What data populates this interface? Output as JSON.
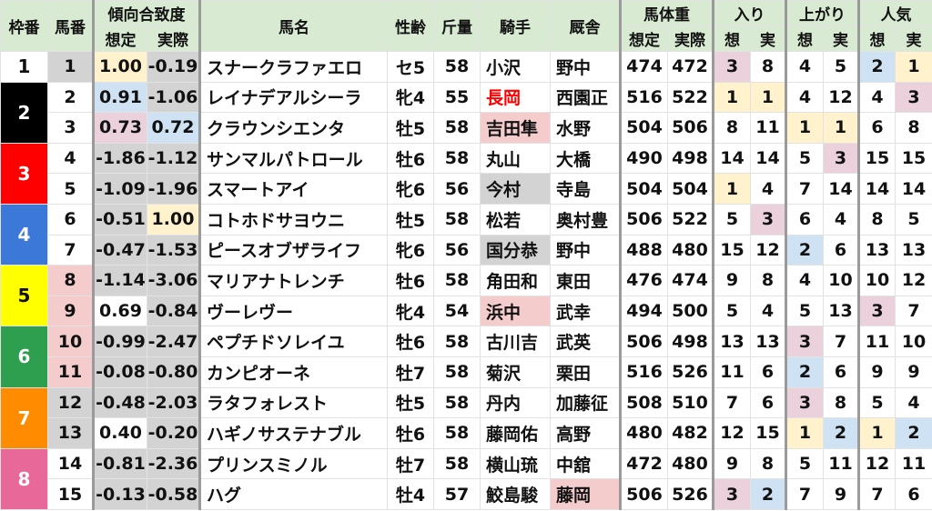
{
  "colors": {
    "g": "#d3d3d3",
    "y": "#fff2cc",
    "b": "#cfe2f3",
    "p": "#ead1dc",
    "s": "#f4cccc",
    "w": "#ffffff",
    "header": "#d9ead3",
    "jockey_red": "#ff0000"
  },
  "headers": {
    "waku": "枠番",
    "umaban": "馬番",
    "match": "傾向合致度",
    "match_pred": "想定",
    "match_act": "実際",
    "name": "馬名",
    "sexage": "性齢",
    "weight": "斤量",
    "jockey": "騎手",
    "trainer": "厩舎",
    "body": "馬体重",
    "body_pred": "想定",
    "body_act": "実際",
    "iri": "入り",
    "iri_pred": "想",
    "iri_act": "実",
    "agari": "上がり",
    "agari_pred": "想",
    "agari_act": "実",
    "ninki": "人気",
    "ninki_pred": "想",
    "ninki_act": "実"
  },
  "waku": [
    {
      "label": "1",
      "bg": "#ffffff",
      "fg": "#111111",
      "rows": 1
    },
    {
      "label": "2",
      "bg": "#000000",
      "fg": "#ffffff",
      "rows": 2
    },
    {
      "label": "3",
      "bg": "#ff0000",
      "fg": "#ffffff",
      "rows": 2
    },
    {
      "label": "4",
      "bg": "#3c78d8",
      "fg": "#ffffff",
      "rows": 2
    },
    {
      "label": "5",
      "bg": "#ffff00",
      "fg": "#111111",
      "rows": 2
    },
    {
      "label": "6",
      "bg": "#2e9e4f",
      "fg": "#ffffff",
      "rows": 2
    },
    {
      "label": "7",
      "bg": "#ff8c00",
      "fg": "#ffffff",
      "rows": 2
    },
    {
      "label": "8",
      "bg": "#e8689a",
      "fg": "#ffffff",
      "rows": 2
    }
  ],
  "rows": [
    {
      "umaban": "1",
      "ub": "g",
      "pred": "1.00",
      "pb": "y",
      "act": "-0.19",
      "ab": "g",
      "name": "スナークラファエロ",
      "sexage": "セ5",
      "weight": "58",
      "jockey": "小沢",
      "jb": "w",
      "trainer": "野中",
      "tb": "w",
      "body_pred": "474",
      "body_act": "472",
      "iri": [
        "3",
        "8"
      ],
      "iri_bg": [
        "p",
        "w"
      ],
      "agari": [
        "4",
        "5"
      ],
      "agari_bg": [
        "w",
        "w"
      ],
      "ninki": [
        "2",
        "1"
      ],
      "ninki_bg": [
        "b",
        "y"
      ]
    },
    {
      "umaban": "2",
      "ub": "w",
      "pred": "0.91",
      "pb": "b",
      "act": "-1.06",
      "ab": "g",
      "name": "レイナデアルシーラ",
      "sexage": "牝4",
      "weight": "55",
      "jockey": "長岡",
      "jb": "w",
      "jred": true,
      "trainer": "西園正",
      "tb": "w",
      "body_pred": "516",
      "body_act": "522",
      "iri": [
        "1",
        "1"
      ],
      "iri_bg": [
        "y",
        "y"
      ],
      "agari": [
        "4",
        "12"
      ],
      "agari_bg": [
        "w",
        "w"
      ],
      "ninki": [
        "4",
        "3"
      ],
      "ninki_bg": [
        "w",
        "p"
      ]
    },
    {
      "umaban": "3",
      "ub": "w",
      "pred": "0.73",
      "pb": "p",
      "act": "0.72",
      "ab": "b",
      "name": "クラウンシエンタ",
      "sexage": "牡5",
      "weight": "58",
      "jockey": "吉田隼",
      "jb": "s",
      "trainer": "水野",
      "tb": "w",
      "body_pred": "504",
      "body_act": "506",
      "iri": [
        "8",
        "11"
      ],
      "iri_bg": [
        "w",
        "w"
      ],
      "agari": [
        "1",
        "1"
      ],
      "agari_bg": [
        "y",
        "y"
      ],
      "ninki": [
        "6",
        "8"
      ],
      "ninki_bg": [
        "w",
        "w"
      ]
    },
    {
      "umaban": "4",
      "ub": "w",
      "pred": "-1.86",
      "pb": "g",
      "act": "-1.12",
      "ab": "g",
      "name": "サンマルパトロール",
      "sexage": "牡6",
      "weight": "58",
      "jockey": "丸山",
      "jb": "w",
      "trainer": "大橋",
      "tb": "w",
      "body_pred": "490",
      "body_act": "498",
      "iri": [
        "14",
        "14"
      ],
      "iri_bg": [
        "w",
        "w"
      ],
      "agari": [
        "5",
        "3"
      ],
      "agari_bg": [
        "w",
        "p"
      ],
      "ninki": [
        "15",
        "15"
      ],
      "ninki_bg": [
        "w",
        "w"
      ]
    },
    {
      "umaban": "5",
      "ub": "w",
      "pred": "-1.09",
      "pb": "g",
      "act": "-1.96",
      "ab": "g",
      "name": "スマートアイ",
      "sexage": "牝6",
      "weight": "56",
      "jockey": "今村",
      "jb": "g",
      "trainer": "寺島",
      "tb": "w",
      "body_pred": "504",
      "body_act": "504",
      "iri": [
        "1",
        "4"
      ],
      "iri_bg": [
        "y",
        "w"
      ],
      "agari": [
        "7",
        "14"
      ],
      "agari_bg": [
        "w",
        "w"
      ],
      "ninki": [
        "14",
        "14"
      ],
      "ninki_bg": [
        "w",
        "w"
      ]
    },
    {
      "umaban": "6",
      "ub": "w",
      "pred": "-0.51",
      "pb": "g",
      "act": "1.00",
      "ab": "y",
      "name": "コトホドサヨウニ",
      "sexage": "牡5",
      "weight": "58",
      "jockey": "松若",
      "jb": "w",
      "trainer": "奥村豊",
      "tb": "w",
      "body_pred": "506",
      "body_act": "522",
      "iri": [
        "5",
        "3"
      ],
      "iri_bg": [
        "w",
        "p"
      ],
      "agari": [
        "6",
        "4"
      ],
      "agari_bg": [
        "w",
        "w"
      ],
      "ninki": [
        "8",
        "5"
      ],
      "ninki_bg": [
        "w",
        "w"
      ]
    },
    {
      "umaban": "7",
      "ub": "w",
      "pred": "-0.47",
      "pb": "g",
      "act": "-1.53",
      "ab": "g",
      "name": "ピースオブザライフ",
      "sexage": "牝6",
      "weight": "56",
      "jockey": "国分恭",
      "jb": "g",
      "trainer": "野中",
      "tb": "w",
      "body_pred": "488",
      "body_act": "480",
      "iri": [
        "15",
        "12"
      ],
      "iri_bg": [
        "w",
        "w"
      ],
      "agari": [
        "2",
        "6"
      ],
      "agari_bg": [
        "b",
        "w"
      ],
      "ninki": [
        "13",
        "13"
      ],
      "ninki_bg": [
        "w",
        "w"
      ]
    },
    {
      "umaban": "8",
      "ub": "s",
      "pred": "-1.14",
      "pb": "g",
      "act": "-3.06",
      "ab": "g",
      "name": "マリアナトレンチ",
      "sexage": "牡6",
      "weight": "58",
      "jockey": "角田和",
      "jb": "w",
      "trainer": "東田",
      "tb": "w",
      "body_pred": "476",
      "body_act": "474",
      "iri": [
        "9",
        "8"
      ],
      "iri_bg": [
        "w",
        "w"
      ],
      "agari": [
        "4",
        "10"
      ],
      "agari_bg": [
        "w",
        "w"
      ],
      "ninki": [
        "10",
        "12"
      ],
      "ninki_bg": [
        "w",
        "w"
      ]
    },
    {
      "umaban": "9",
      "ub": "s",
      "pred": "0.69",
      "pb": "w",
      "act": "-0.84",
      "ab": "g",
      "name": "ヴーレヴー",
      "sexage": "牝4",
      "weight": "54",
      "jockey": "浜中",
      "jb": "s",
      "trainer": "武幸",
      "tb": "w",
      "body_pred": "494",
      "body_act": "500",
      "iri": [
        "5",
        "4"
      ],
      "iri_bg": [
        "w",
        "w"
      ],
      "agari": [
        "5",
        "13"
      ],
      "agari_bg": [
        "w",
        "w"
      ],
      "ninki": [
        "3",
        "7"
      ],
      "ninki_bg": [
        "p",
        "w"
      ]
    },
    {
      "umaban": "10",
      "ub": "s",
      "pred": "-0.99",
      "pb": "g",
      "act": "-2.47",
      "ab": "g",
      "name": "ペプチドソレイユ",
      "sexage": "牡6",
      "weight": "58",
      "jockey": "古川吉",
      "jb": "w",
      "trainer": "武英",
      "tb": "w",
      "body_pred": "506",
      "body_act": "498",
      "iri": [
        "13",
        "13"
      ],
      "iri_bg": [
        "w",
        "w"
      ],
      "agari": [
        "3",
        "7"
      ],
      "agari_bg": [
        "p",
        "w"
      ],
      "ninki": [
        "11",
        "10"
      ],
      "ninki_bg": [
        "w",
        "w"
      ]
    },
    {
      "umaban": "11",
      "ub": "s",
      "pred": "-0.08",
      "pb": "g",
      "act": "-0.80",
      "ab": "g",
      "name": "カンピオーネ",
      "sexage": "牡7",
      "weight": "58",
      "jockey": "菊沢",
      "jb": "w",
      "trainer": "栗田",
      "tb": "w",
      "body_pred": "516",
      "body_act": "526",
      "iri": [
        "11",
        "6"
      ],
      "iri_bg": [
        "w",
        "w"
      ],
      "agari": [
        "2",
        "6"
      ],
      "agari_bg": [
        "b",
        "w"
      ],
      "ninki": [
        "9",
        "9"
      ],
      "ninki_bg": [
        "w",
        "w"
      ]
    },
    {
      "umaban": "12",
      "ub": "g",
      "pred": "-0.48",
      "pb": "g",
      "act": "-2.03",
      "ab": "g",
      "name": "ラタフォレスト",
      "sexage": "牡5",
      "weight": "58",
      "jockey": "丹内",
      "jb": "w",
      "trainer": "加藤征",
      "tb": "w",
      "body_pred": "508",
      "body_act": "510",
      "iri": [
        "7",
        "6"
      ],
      "iri_bg": [
        "w",
        "w"
      ],
      "agari": [
        "3",
        "8"
      ],
      "agari_bg": [
        "p",
        "w"
      ],
      "ninki": [
        "5",
        "4"
      ],
      "ninki_bg": [
        "w",
        "w"
      ]
    },
    {
      "umaban": "13",
      "ub": "g",
      "pred": "0.40",
      "pb": "w",
      "act": "-0.20",
      "ab": "g",
      "name": "ハギノサステナブル",
      "sexage": "牡6",
      "weight": "58",
      "jockey": "藤岡佑",
      "jb": "w",
      "trainer": "高野",
      "tb": "w",
      "body_pred": "480",
      "body_act": "482",
      "iri": [
        "12",
        "15"
      ],
      "iri_bg": [
        "w",
        "w"
      ],
      "agari": [
        "1",
        "2"
      ],
      "agari_bg": [
        "y",
        "b"
      ],
      "ninki": [
        "1",
        "2"
      ],
      "ninki_bg": [
        "y",
        "b"
      ]
    },
    {
      "umaban": "14",
      "ub": "w",
      "pred": "-0.81",
      "pb": "g",
      "act": "-2.36",
      "ab": "g",
      "name": "プリンスミノル",
      "sexage": "牡7",
      "weight": "58",
      "jockey": "横山琉",
      "jb": "w",
      "trainer": "中舘",
      "tb": "w",
      "body_pred": "472",
      "body_act": "480",
      "iri": [
        "9",
        "8"
      ],
      "iri_bg": [
        "w",
        "w"
      ],
      "agari": [
        "5",
        "11"
      ],
      "agari_bg": [
        "w",
        "w"
      ],
      "ninki": [
        "12",
        "11"
      ],
      "ninki_bg": [
        "w",
        "w"
      ]
    },
    {
      "umaban": "15",
      "ub": "w",
      "pred": "-0.13",
      "pb": "g",
      "act": "-0.58",
      "ab": "g",
      "name": "ハグ",
      "sexage": "牡4",
      "weight": "57",
      "jockey": "鮫島駿",
      "jb": "w",
      "trainer": "藤岡",
      "tb": "s",
      "body_pred": "506",
      "body_act": "526",
      "iri": [
        "3",
        "2"
      ],
      "iri_bg": [
        "p",
        "b"
      ],
      "agari": [
        "7",
        "9"
      ],
      "agari_bg": [
        "w",
        "w"
      ],
      "ninki": [
        "7",
        "6"
      ],
      "ninki_bg": [
        "w",
        "w"
      ]
    }
  ]
}
